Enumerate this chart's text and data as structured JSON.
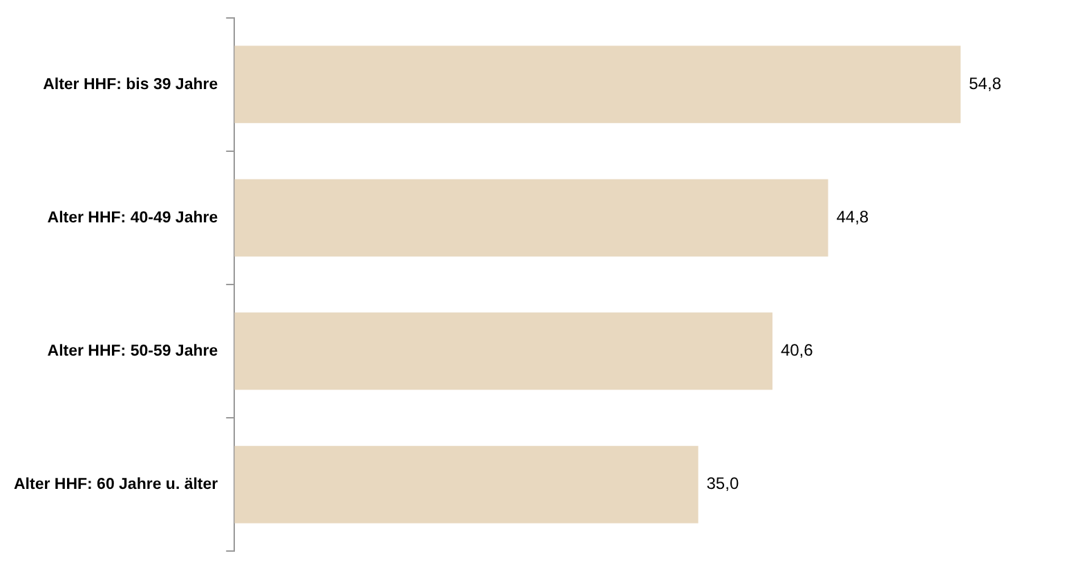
{
  "chart_data": {
    "type": "bar",
    "orientation": "horizontal",
    "categories": [
      "Alter HHF: bis 39 Jahre",
      "Alter HHF: 40-49 Jahre",
      "Alter HHF: 50-59 Jahre",
      "Alter HHF: 60 Jahre u. älter"
    ],
    "values": [
      54.8,
      44.8,
      40.6,
      35.0
    ],
    "value_labels": [
      "54,8",
      "44,8",
      "40,6",
      "35,0"
    ],
    "color": "#e8d8bf",
    "tick_labels": "y"
  }
}
